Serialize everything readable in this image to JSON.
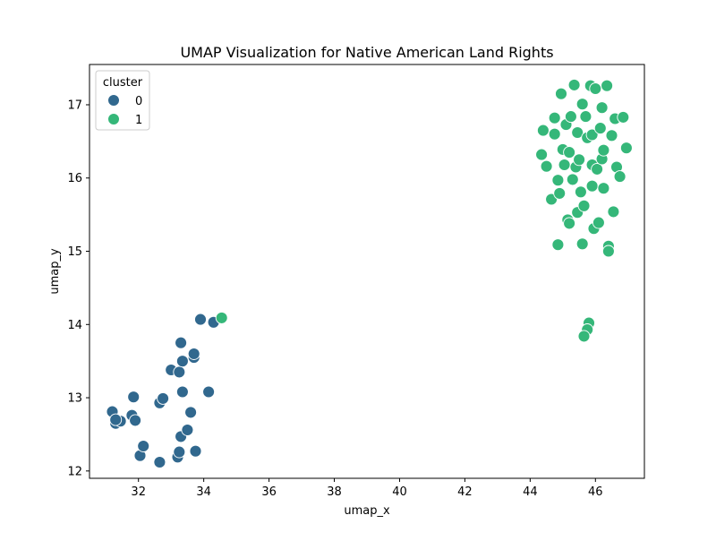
{
  "chart_data": {
    "type": "scatter",
    "title": "UMAP Visualization for Native American Land Rights",
    "xlabel": "umap_x",
    "ylabel": "umap_y",
    "xlim": [
      30.5,
      47.5
    ],
    "ylim": [
      11.9,
      17.55
    ],
    "x_ticks": [
      32,
      34,
      36,
      38,
      40,
      42,
      44,
      46
    ],
    "y_ticks": [
      12,
      13,
      14,
      15,
      16,
      17
    ],
    "grid": false,
    "legend": {
      "title": "cluster",
      "placement": "top-left",
      "entries": [
        {
          "label": "0",
          "color": "#31688e"
        },
        {
          "label": "1",
          "color": "#35b779"
        }
      ]
    },
    "series": [
      {
        "name": "0",
        "color": "#31688e",
        "points": [
          [
            31.2,
            12.81
          ],
          [
            31.3,
            12.65
          ],
          [
            31.45,
            12.68
          ],
          [
            31.3,
            12.7
          ],
          [
            31.8,
            12.76
          ],
          [
            31.85,
            13.01
          ],
          [
            31.9,
            12.69
          ],
          [
            32.05,
            12.21
          ],
          [
            32.15,
            12.34
          ],
          [
            32.65,
            12.12
          ],
          [
            32.65,
            12.93
          ],
          [
            32.75,
            12.99
          ],
          [
            33.0,
            13.38
          ],
          [
            33.2,
            12.19
          ],
          [
            33.25,
            12.26
          ],
          [
            33.25,
            13.35
          ],
          [
            33.3,
            12.47
          ],
          [
            33.3,
            13.75
          ],
          [
            33.35,
            13.5
          ],
          [
            33.35,
            13.08
          ],
          [
            33.5,
            12.56
          ],
          [
            33.6,
            12.8
          ],
          [
            33.7,
            13.55
          ],
          [
            33.7,
            13.6
          ],
          [
            33.75,
            12.27
          ],
          [
            33.9,
            14.07
          ],
          [
            34.15,
            13.08
          ],
          [
            34.3,
            14.03
          ]
        ]
      },
      {
        "name": "1",
        "color": "#35b779",
        "points": [
          [
            34.55,
            14.09
          ],
          [
            44.35,
            16.32
          ],
          [
            44.4,
            16.65
          ],
          [
            44.5,
            16.16
          ],
          [
            44.65,
            15.71
          ],
          [
            44.75,
            16.6
          ],
          [
            44.75,
            16.82
          ],
          [
            44.85,
            15.97
          ],
          [
            44.85,
            15.09
          ],
          [
            44.9,
            15.79
          ],
          [
            44.95,
            17.15
          ],
          [
            45.0,
            16.39
          ],
          [
            45.05,
            16.18
          ],
          [
            45.1,
            16.73
          ],
          [
            45.15,
            15.43
          ],
          [
            45.2,
            15.38
          ],
          [
            45.2,
            16.35
          ],
          [
            45.25,
            16.84
          ],
          [
            45.3,
            15.98
          ],
          [
            45.35,
            17.27
          ],
          [
            45.4,
            16.15
          ],
          [
            45.45,
            16.62
          ],
          [
            45.45,
            15.53
          ],
          [
            45.5,
            16.25
          ],
          [
            45.55,
            15.81
          ],
          [
            45.6,
            17.01
          ],
          [
            45.6,
            15.1
          ],
          [
            45.65,
            15.62
          ],
          [
            45.7,
            16.84
          ],
          [
            45.75,
            16.55
          ],
          [
            45.8,
            14.02
          ],
          [
            45.75,
            13.93
          ],
          [
            45.65,
            13.84
          ],
          [
            45.85,
            17.26
          ],
          [
            45.9,
            16.59
          ],
          [
            45.9,
            16.18
          ],
          [
            45.9,
            15.89
          ],
          [
            45.95,
            15.31
          ],
          [
            46.0,
            17.22
          ],
          [
            46.05,
            16.12
          ],
          [
            46.1,
            15.39
          ],
          [
            46.15,
            16.68
          ],
          [
            46.2,
            16.26
          ],
          [
            46.2,
            16.96
          ],
          [
            46.25,
            16.38
          ],
          [
            46.25,
            15.86
          ],
          [
            46.35,
            17.26
          ],
          [
            46.4,
            15.07
          ],
          [
            46.4,
            15.0
          ],
          [
            46.5,
            16.58
          ],
          [
            46.55,
            15.54
          ],
          [
            46.6,
            16.81
          ],
          [
            46.65,
            16.15
          ],
          [
            46.75,
            16.02
          ],
          [
            46.85,
            16.83
          ],
          [
            46.95,
            16.41
          ]
        ]
      }
    ]
  }
}
